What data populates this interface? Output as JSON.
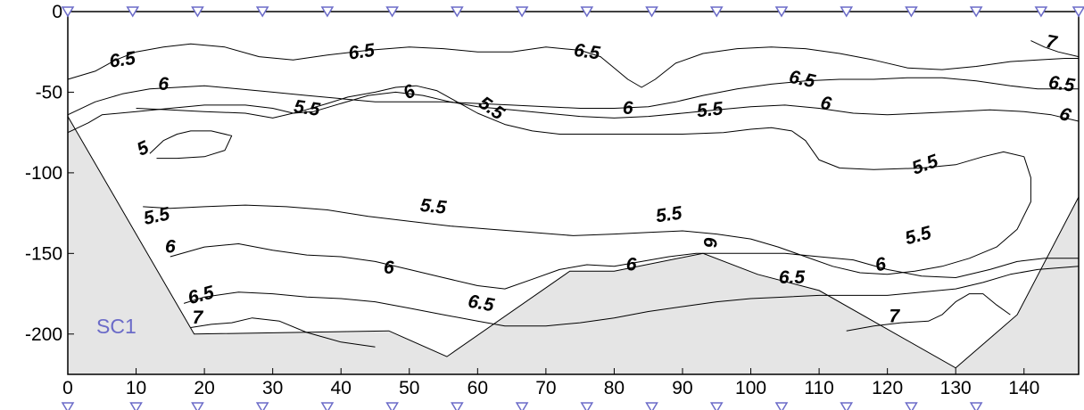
{
  "chart_data": {
    "type": "contour",
    "xlim": [
      0,
      148
    ],
    "ylim": [
      -225,
      0
    ],
    "x_ticks": [
      0,
      10,
      20,
      30,
      40,
      50,
      60,
      70,
      80,
      90,
      100,
      110,
      120,
      130,
      140
    ],
    "y_ticks": [
      0,
      -50,
      -100,
      -150,
      -200
    ],
    "station_label": "SC1",
    "station_marker_color": "#6b6bc8",
    "seabed_fill_color": "#e5e5e5",
    "station_x": [
      0,
      9.5,
      19,
      28.5,
      38,
      47.5,
      57,
      66.5,
      76,
      85.5,
      95,
      104.5,
      114,
      123.5,
      133,
      142.5,
      148
    ],
    "bottom_station_x": [
      0,
      10,
      19,
      28.5,
      38,
      47.5,
      57,
      66.5,
      76,
      85.5,
      95,
      104.5,
      114,
      123.5,
      133
    ],
    "seabed": [
      [
        0,
        -65
      ],
      [
        18.5,
        -200
      ],
      [
        47,
        -198
      ],
      [
        55.5,
        -214
      ],
      [
        73.5,
        -161
      ],
      [
        80,
        -161
      ],
      [
        93,
        -150
      ],
      [
        101,
        -163
      ],
      [
        110,
        -173
      ],
      [
        130,
        -221
      ],
      [
        139,
        -188
      ],
      [
        148,
        -115
      ]
    ],
    "contours": [
      {
        "level": 6.5,
        "label": "6.5",
        "points": [
          [
            0,
            -42
          ],
          [
            4,
            -37
          ],
          [
            7,
            -30
          ],
          [
            10,
            -25
          ],
          [
            14,
            -22
          ],
          [
            18,
            -20
          ],
          [
            23,
            -22
          ],
          [
            28,
            -28
          ],
          [
            33,
            -30
          ],
          [
            38,
            -27
          ],
          [
            44,
            -24
          ],
          [
            50,
            -22
          ],
          [
            55,
            -23
          ],
          [
            60,
            -25
          ],
          [
            65,
            -25
          ],
          [
            70,
            -22
          ],
          [
            75,
            -24
          ],
          [
            78,
            -28
          ],
          [
            80,
            -35
          ],
          [
            82,
            -42
          ],
          [
            84,
            -47
          ],
          [
            86,
            -42
          ],
          [
            89,
            -32
          ],
          [
            93,
            -26
          ],
          [
            98,
            -23
          ],
          [
            103,
            -22
          ],
          [
            108,
            -23
          ],
          [
            113,
            -26
          ],
          [
            118,
            -30
          ],
          [
            123,
            -35
          ],
          [
            128,
            -36
          ],
          [
            133,
            -34
          ],
          [
            138,
            -31
          ],
          [
            142,
            -30
          ],
          [
            146,
            -29
          ],
          [
            148,
            -29
          ]
        ]
      },
      {
        "level": 6,
        "label": "6",
        "points": [
          [
            0,
            -64
          ],
          [
            4,
            -56
          ],
          [
            8,
            -51
          ],
          [
            12,
            -48
          ],
          [
            16,
            -47
          ],
          [
            20,
            -46
          ],
          [
            25,
            -48
          ],
          [
            30,
            -50
          ],
          [
            35,
            -52
          ],
          [
            40,
            -54
          ],
          [
            45,
            -56
          ],
          [
            50,
            -56
          ],
          [
            55,
            -56
          ],
          [
            60,
            -57
          ],
          [
            65,
            -58
          ],
          [
            70,
            -59
          ],
          [
            75,
            -60
          ],
          [
            80,
            -60
          ],
          [
            85,
            -59
          ],
          [
            89,
            -56
          ],
          [
            93,
            -52
          ],
          [
            98,
            -48
          ],
          [
            103,
            -45
          ],
          [
            108,
            -43
          ],
          [
            113,
            -42
          ],
          [
            118,
            -42
          ],
          [
            123,
            -41
          ],
          [
            128,
            -41
          ],
          [
            133,
            -43
          ],
          [
            138,
            -46
          ],
          [
            142,
            -48
          ],
          [
            146,
            -48
          ],
          [
            148,
            -48
          ]
        ]
      },
      {
        "level": 6,
        "label": "",
        "points": [
          [
            0,
            -75
          ],
          [
            3,
            -69
          ],
          [
            5,
            -64
          ],
          [
            10,
            -62
          ],
          [
            15,
            -60
          ],
          [
            20,
            -58
          ],
          [
            26,
            -58
          ],
          [
            30,
            -60
          ],
          [
            33,
            -63
          ],
          [
            36,
            -62
          ],
          [
            40,
            -57
          ],
          [
            44,
            -52
          ],
          [
            48,
            -50
          ],
          [
            52,
            -52
          ],
          [
            56,
            -56
          ],
          [
            60,
            -59
          ],
          [
            65,
            -61
          ],
          [
            70,
            -63
          ],
          [
            75,
            -65
          ],
          [
            80,
            -66
          ],
          [
            85,
            -65
          ],
          [
            90,
            -63
          ],
          [
            95,
            -61
          ],
          [
            100,
            -59
          ],
          [
            105,
            -58
          ],
          [
            110,
            -60
          ],
          [
            115,
            -63
          ],
          [
            120,
            -64
          ],
          [
            125,
            -63
          ],
          [
            130,
            -62
          ],
          [
            135,
            -61
          ],
          [
            140,
            -62
          ],
          [
            144,
            -64
          ],
          [
            148,
            -68
          ]
        ]
      },
      {
        "level": 5.5,
        "label": "5.5",
        "points": [
          [
            10,
            -60
          ],
          [
            15,
            -61
          ],
          [
            20,
            -62
          ],
          [
            26,
            -63
          ],
          [
            30,
            -66
          ],
          [
            34,
            -62
          ],
          [
            38,
            -57
          ],
          [
            41,
            -53
          ],
          [
            45,
            -50
          ],
          [
            48,
            -47
          ],
          [
            51,
            -46
          ],
          [
            54,
            -49
          ],
          [
            57,
            -56
          ],
          [
            60,
            -63
          ],
          [
            64,
            -70
          ],
          [
            68,
            -74
          ],
          [
            72,
            -76
          ],
          [
            78,
            -76
          ],
          [
            84,
            -76
          ],
          [
            90,
            -76
          ],
          [
            96,
            -75
          ],
          [
            100,
            -73
          ],
          [
            103,
            -72
          ],
          [
            106,
            -74
          ],
          [
            108,
            -80
          ],
          [
            110,
            -92
          ],
          [
            113,
            -97
          ],
          [
            118,
            -98
          ],
          [
            125,
            -97
          ],
          [
            130,
            -95
          ],
          [
            134,
            -90
          ],
          [
            137,
            -87
          ],
          [
            140,
            -90
          ],
          [
            141,
            -103
          ],
          [
            141,
            -118
          ],
          [
            139,
            -135
          ],
          [
            136,
            -146
          ],
          [
            132,
            -153
          ],
          [
            128,
            -158
          ],
          [
            124,
            -161
          ],
          [
            120,
            -163
          ],
          [
            116,
            -162
          ],
          [
            112,
            -158
          ],
          [
            108,
            -152
          ],
          [
            104,
            -146
          ],
          [
            100,
            -141
          ],
          [
            95,
            -138
          ],
          [
            90,
            -136
          ],
          [
            85,
            -137
          ],
          [
            80,
            -138
          ],
          [
            74,
            -139
          ],
          [
            68,
            -137
          ],
          [
            62,
            -135
          ],
          [
            56,
            -133
          ],
          [
            50,
            -130
          ],
          [
            44,
            -127
          ],
          [
            38,
            -123
          ],
          [
            32,
            -121
          ],
          [
            26,
            -120
          ],
          [
            20,
            -121
          ],
          [
            15,
            -122
          ],
          [
            11,
            -121
          ]
        ]
      },
      {
        "level": 5,
        "label": "5",
        "points": [
          [
            12,
            -88
          ],
          [
            14,
            -80
          ],
          [
            16,
            -76
          ],
          [
            18,
            -74
          ],
          [
            21,
            -74
          ],
          [
            24,
            -77
          ],
          [
            23,
            -86
          ],
          [
            20,
            -90
          ],
          [
            16,
            -91
          ],
          [
            13,
            -91
          ]
        ]
      },
      {
        "level": 6,
        "label": "6",
        "points": [
          [
            15,
            -152
          ],
          [
            20,
            -146
          ],
          [
            25,
            -144
          ],
          [
            30,
            -148
          ],
          [
            35,
            -151
          ],
          [
            40,
            -152
          ],
          [
            45,
            -155
          ],
          [
            50,
            -160
          ],
          [
            55,
            -165
          ],
          [
            60,
            -170
          ],
          [
            64,
            -172
          ],
          [
            68,
            -166
          ],
          [
            72,
            -160
          ],
          [
            76,
            -157
          ],
          [
            80,
            -158
          ],
          [
            84,
            -155
          ],
          [
            88,
            -152
          ],
          [
            92,
            -150
          ],
          [
            96,
            -150
          ],
          [
            100,
            -150
          ],
          [
            105,
            -150
          ],
          [
            110,
            -152
          ],
          [
            115,
            -154
          ],
          [
            120,
            -160
          ],
          [
            125,
            -164
          ],
          [
            130,
            -165
          ],
          [
            135,
            -160
          ],
          [
            139,
            -155
          ],
          [
            143,
            -153
          ],
          [
            148,
            -153
          ]
        ]
      },
      {
        "level": 6.5,
        "label": "6.5",
        "points": [
          [
            17,
            -181
          ],
          [
            20,
            -177
          ],
          [
            25,
            -174
          ],
          [
            30,
            -175
          ],
          [
            35,
            -177
          ],
          [
            40,
            -178
          ],
          [
            45,
            -180
          ],
          [
            50,
            -184
          ],
          [
            55,
            -188
          ],
          [
            60,
            -192
          ],
          [
            64,
            -195
          ],
          [
            70,
            -195
          ],
          [
            75,
            -193
          ],
          [
            80,
            -190
          ],
          [
            85,
            -186
          ],
          [
            90,
            -183
          ],
          [
            95,
            -180
          ],
          [
            100,
            -178
          ],
          [
            105,
            -177
          ],
          [
            110,
            -176
          ],
          [
            115,
            -176
          ],
          [
            120,
            -176
          ],
          [
            125,
            -174
          ],
          [
            130,
            -172
          ],
          [
            134,
            -168
          ],
          [
            138,
            -163
          ],
          [
            142,
            -160
          ],
          [
            148,
            -158
          ]
        ]
      },
      {
        "level": 7,
        "label": "7",
        "points": [
          [
            18,
            -196
          ],
          [
            21,
            -194
          ],
          [
            24,
            -193
          ],
          [
            27,
            -190
          ],
          [
            31,
            -192
          ],
          [
            35,
            -199
          ],
          [
            40,
            -205
          ],
          [
            45,
            -208
          ]
        ]
      },
      {
        "level": 7,
        "label": "7",
        "points": [
          [
            114,
            -198
          ],
          [
            118,
            -195
          ],
          [
            122,
            -193
          ],
          [
            126,
            -192
          ],
          [
            128,
            -188
          ],
          [
            130,
            -180
          ],
          [
            132,
            -175
          ],
          [
            134,
            -175
          ],
          [
            136,
            -182
          ],
          [
            138,
            -188
          ]
        ]
      },
      {
        "level": 7,
        "label": "7",
        "points": [
          [
            141,
            -18
          ],
          [
            143,
            -22
          ],
          [
            145,
            -25
          ],
          [
            148,
            -28
          ]
        ]
      }
    ],
    "contour_labels": [
      {
        "text": "6.5",
        "x": 8,
        "y": -30,
        "rot": -8
      },
      {
        "text": "6.5",
        "x": 43,
        "y": -25,
        "rot": -8
      },
      {
        "text": "6.5",
        "x": 76,
        "y": -25,
        "rot": 8
      },
      {
        "text": "6.5",
        "x": 107.5,
        "y": -42,
        "rot": 12
      },
      {
        "text": "6.5",
        "x": 145.5,
        "y": -45,
        "rot": 8
      },
      {
        "text": "7",
        "x": 144,
        "y": -19,
        "rot": 10
      },
      {
        "text": "6",
        "x": 14,
        "y": -45,
        "rot": 0
      },
      {
        "text": "6",
        "x": 50,
        "y": -50,
        "rot": -28
      },
      {
        "text": "5.5",
        "x": 35,
        "y": -60,
        "rot": 8
      },
      {
        "text": "5.5",
        "x": 62,
        "y": -60,
        "rot": 35
      },
      {
        "text": "6",
        "x": 82,
        "y": -60,
        "rot": 0
      },
      {
        "text": "5.5",
        "x": 94,
        "y": -61,
        "rot": -6
      },
      {
        "text": "6",
        "x": 111,
        "y": -57,
        "rot": 12
      },
      {
        "text": "6",
        "x": 146,
        "y": -64,
        "rot": 20
      },
      {
        "text": "5",
        "x": 11,
        "y": -85,
        "rot": -25
      },
      {
        "text": "5.5",
        "x": 125.5,
        "y": -95,
        "rot": -20
      },
      {
        "text": "5.5",
        "x": 13,
        "y": -127,
        "rot": -12
      },
      {
        "text": "5.5",
        "x": 53.5,
        "y": -121,
        "rot": 6
      },
      {
        "text": "5.5",
        "x": 88,
        "y": -126,
        "rot": -8
      },
      {
        "text": "5.5",
        "x": 124.5,
        "y": -139,
        "rot": -15
      },
      {
        "text": "6",
        "x": 15,
        "y": -146,
        "rot": 0
      },
      {
        "text": "6",
        "x": 47,
        "y": -159,
        "rot": 0
      },
      {
        "text": "6",
        "x": 82.5,
        "y": -157,
        "rot": 0
      },
      {
        "text": "6",
        "x": 94,
        "y": -143,
        "rot": 90
      },
      {
        "text": "6",
        "x": 119,
        "y": -157,
        "rot": -10
      },
      {
        "text": "6.5",
        "x": 19.5,
        "y": -176,
        "rot": -15
      },
      {
        "text": "6.5",
        "x": 60.5,
        "y": -181,
        "rot": 10
      },
      {
        "text": "6.5",
        "x": 106,
        "y": -165,
        "rot": 0
      },
      {
        "text": "7",
        "x": 19,
        "y": -190,
        "rot": 0
      },
      {
        "text": "7",
        "x": 121,
        "y": -189,
        "rot": 0
      }
    ]
  }
}
